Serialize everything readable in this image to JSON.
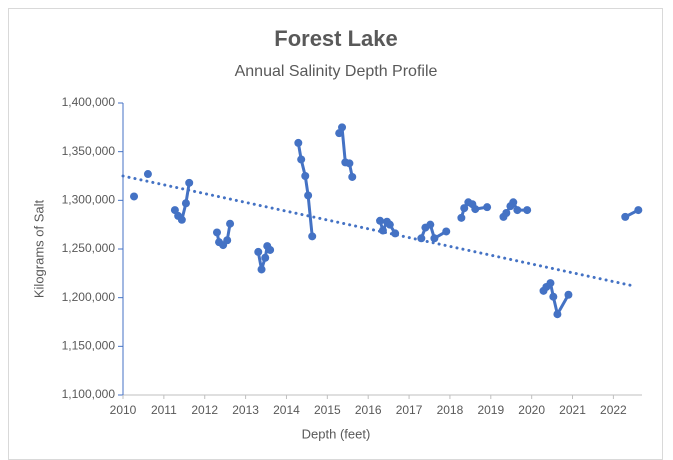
{
  "chart_data": {
    "type": "line",
    "title": "Forest Lake",
    "subtitle": "Annual Salinity Depth Profile",
    "x_label": "Depth (feet)",
    "y_label": "Kilograms of Salt",
    "xlim": [
      2010,
      2022.7
    ],
    "xticks": [
      2010,
      2011,
      2012,
      2013,
      2014,
      2015,
      2016,
      2017,
      2018,
      2019,
      2020,
      2021,
      2022
    ],
    "ylim": [
      1100000,
      1400000
    ],
    "yticks": [
      {
        "value": 1100000,
        "label": "1,100,000"
      },
      {
        "value": 1150000,
        "label": "1,150,000"
      },
      {
        "value": 1200000,
        "label": "1,200,000"
      },
      {
        "value": 1250000,
        "label": "1,250,000"
      },
      {
        "value": 1300000,
        "label": "1,300,000"
      },
      {
        "value": 1350000,
        "label": "1,350,000"
      },
      {
        "value": 1400000,
        "label": "1,400,000"
      }
    ],
    "grid": false,
    "series": [
      {
        "color": "#4472c4",
        "x": [
          2010.27,
          null,
          2010.61,
          null,
          2011.27,
          2011.35,
          2011.44,
          2011.54,
          2011.62,
          null,
          2012.3,
          2012.35,
          2012.45,
          2012.55,
          2012.62,
          null,
          2013.31,
          2013.39,
          2013.48,
          2013.53,
          2013.6,
          null,
          2014.29,
          2014.36,
          2014.46,
          2014.53,
          2014.63,
          null,
          2015.29,
          2015.36,
          2015.44,
          2015.54,
          2015.61,
          null,
          2016.29,
          2016.36,
          2016.46,
          2016.53,
          2016.66,
          null,
          2017.3,
          2017.4,
          2017.52,
          2017.62,
          2017.91,
          null,
          2018.28,
          2018.35,
          2018.45,
          2018.55,
          2018.62,
          2018.91,
          null,
          2019.31,
          2019.38,
          2019.48,
          2019.55,
          2019.65,
          2019.89,
          null,
          2020.29,
          2020.36,
          2020.46,
          2020.53,
          2020.63,
          2020.9,
          null,
          2022.29,
          2022.61
        ],
        "values": [
          1304000,
          null,
          1327000,
          null,
          1290000,
          1284000,
          1280000,
          1297000,
          1318000,
          null,
          1267000,
          1257000,
          1254000,
          1259000,
          1276000,
          null,
          1247000,
          1229000,
          1241000,
          1253000,
          1249000,
          null,
          1359000,
          1342000,
          1325000,
          1305000,
          1263000,
          null,
          1369000,
          1375000,
          1339000,
          1338000,
          1324000,
          null,
          1279000,
          1269000,
          1278000,
          1275000,
          1266000,
          null,
          1261000,
          1272000,
          1275000,
          1261000,
          1268000,
          null,
          1282000,
          1292000,
          1298000,
          1296000,
          1291000,
          1293000,
          null,
          1283000,
          1287000,
          1294000,
          1298000,
          1290000,
          1290000,
          null,
          1207000,
          1211000,
          1215000,
          1201000,
          1183000,
          1203000,
          null,
          1283000,
          1290000
        ]
      }
    ],
    "trendline": {
      "color": "#4472c4",
      "x": [
        2010,
        2022.5
      ],
      "values": [
        1325000,
        1212000
      ]
    }
  }
}
